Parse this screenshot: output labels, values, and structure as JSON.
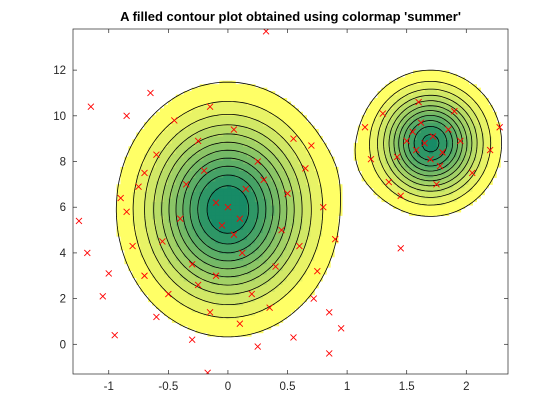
{
  "chart_data": {
    "type": "contourf",
    "title": "A filled contour plot obtained using colormap 'summer'",
    "xlabel": "",
    "ylabel": "",
    "colormap": "summer",
    "xlim": [
      -1.3,
      2.35
    ],
    "ylim": [
      -1.3,
      13.8
    ],
    "x_ticks": [
      -1,
      -0.5,
      0,
      0.5,
      1,
      1.5,
      2
    ],
    "x_tick_labels": [
      "-1",
      "-0.5",
      "0",
      "0.5",
      "1",
      "1.5",
      "2"
    ],
    "y_ticks": [
      0,
      2,
      4,
      6,
      8,
      10,
      12
    ],
    "y_tick_labels": [
      "0",
      "2",
      "4",
      "6",
      "8",
      "10",
      "12"
    ],
    "density_components": [
      {
        "weight": 1.0,
        "center": [
          0.0,
          5.9
        ],
        "sigma": [
          0.42,
          2.5
        ]
      },
      {
        "weight": 0.95,
        "center": [
          1.7,
          8.8
        ],
        "sigma": [
          0.27,
          1.45
        ]
      }
    ],
    "contour_levels": 11,
    "grid": false,
    "scatter": {
      "marker": "x",
      "color": "#ff0000",
      "points": [
        [
          0.32,
          13.7
        ],
        [
          -0.17,
          -1.25
        ],
        [
          0.85,
          -0.4
        ],
        [
          -1.15,
          10.4
        ],
        [
          -1.25,
          5.4
        ],
        [
          -1.18,
          4.0
        ],
        [
          -1.05,
          2.1
        ],
        [
          -0.95,
          0.4
        ],
        [
          -0.85,
          10.0
        ],
        [
          -0.65,
          11.0
        ],
        [
          -0.45,
          9.8
        ],
        [
          -0.25,
          8.9
        ],
        [
          -0.15,
          10.4
        ],
        [
          0.7,
          8.7
        ],
        [
          0.8,
          6.0
        ],
        [
          -0.6,
          1.2
        ],
        [
          0.25,
          -0.1
        ],
        [
          0.55,
          0.3
        ],
        [
          0.95,
          0.7
        ],
        [
          0.72,
          2.0
        ],
        [
          -0.9,
          6.4
        ],
        [
          -1.0,
          3.1
        ],
        [
          -0.7,
          7.5
        ],
        [
          -0.8,
          4.3
        ],
        [
          1.45,
          4.2
        ],
        [
          1.15,
          9.5
        ],
        [
          1.3,
          10.1
        ],
        [
          2.05,
          7.5
        ],
        [
          2.28,
          9.5
        ],
        [
          1.9,
          10.2
        ],
        [
          1.6,
          10.6
        ],
        [
          1.75,
          7.0
        ],
        [
          1.35,
          7.1
        ],
        [
          1.2,
          8.1
        ],
        [
          2.2,
          8.5
        ],
        [
          1.45,
          6.5
        ],
        [
          0.1,
          5.5
        ],
        [
          -0.1,
          6.2
        ],
        [
          0.05,
          4.8
        ],
        [
          0.15,
          6.8
        ],
        [
          -0.05,
          5.2
        ],
        [
          0.3,
          7.2
        ],
        [
          -0.2,
          7.6
        ],
        [
          0.0,
          6.0
        ],
        [
          0.12,
          4.0
        ],
        [
          -0.3,
          3.5
        ],
        [
          0.4,
          3.4
        ],
        [
          -0.4,
          5.5
        ],
        [
          0.45,
          5.0
        ],
        [
          -0.25,
          2.6
        ],
        [
          0.2,
          2.2
        ],
        [
          0.5,
          6.6
        ],
        [
          -0.55,
          4.5
        ],
        [
          -0.35,
          7.0
        ],
        [
          0.25,
          8.0
        ],
        [
          -0.1,
          3.0
        ],
        [
          0.6,
          4.3
        ],
        [
          -0.5,
          2.2
        ],
        [
          0.35,
          1.6
        ],
        [
          -0.15,
          1.4
        ],
        [
          1.65,
          8.8
        ],
        [
          1.72,
          9.1
        ],
        [
          1.58,
          8.5
        ],
        [
          1.8,
          8.4
        ],
        [
          1.55,
          9.3
        ],
        [
          1.85,
          9.4
        ],
        [
          1.7,
          8.1
        ],
        [
          1.5,
          8.9
        ],
        [
          1.95,
          8.9
        ],
        [
          1.62,
          9.7
        ],
        [
          1.78,
          7.8
        ],
        [
          1.42,
          8.2
        ],
        [
          -0.75,
          6.9
        ],
        [
          0.65,
          7.7
        ],
        [
          -0.6,
          8.3
        ],
        [
          0.05,
          9.4
        ],
        [
          0.55,
          9.0
        ],
        [
          -0.85,
          5.8
        ],
        [
          0.75,
          3.2
        ],
        [
          -0.7,
          3.0
        ],
        [
          0.9,
          4.6
        ],
        [
          0.85,
          1.4
        ],
        [
          -0.3,
          0.2
        ],
        [
          0.1,
          0.9
        ]
      ]
    }
  }
}
